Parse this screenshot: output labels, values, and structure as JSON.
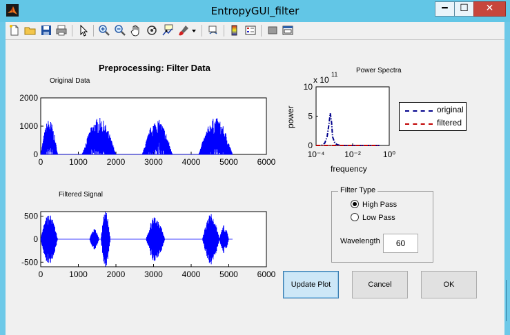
{
  "window": {
    "title": "EntropyGUI_filter",
    "controls": {
      "minimize": "━",
      "maximize": "☐",
      "close": "✕"
    }
  },
  "toolbar": {
    "icons": [
      "new-file-icon",
      "open-folder-icon",
      "save-icon",
      "print-icon",
      "pointer-icon",
      "zoom-in-icon",
      "zoom-out-icon",
      "pan-hand-icon",
      "rotate-3d-icon",
      "data-cursor-icon",
      "brush-icon",
      "brush-dropdown-icon",
      "link-plot-icon",
      "colorbar-icon",
      "legend-icon",
      "hide-plot-tools-icon",
      "show-plot-tools-icon"
    ],
    "dock_arrow": "↘"
  },
  "heading": "Preprocessing: Filter Data",
  "original_plot": {
    "label": "Original Data"
  },
  "filtered_plot": {
    "label": "Filtered Signal"
  },
  "power_plot": {
    "title": "Power Spectra",
    "exponent_base": "x 10",
    "exponent_power": "11",
    "xlabel": "frequency",
    "ylabel": "power"
  },
  "legend": {
    "original": "original",
    "filtered": "filtered"
  },
  "filter_panel": {
    "title": "Filter Type",
    "options": [
      {
        "label": "High Pass",
        "selected": true
      },
      {
        "label": "Low Pass",
        "selected": false
      }
    ],
    "wavelength_label": "Wavelength",
    "wavelength_value": "60"
  },
  "buttons": {
    "update": "Update Plot",
    "cancel": "Cancel",
    "ok": "OK"
  },
  "chart_data": [
    {
      "type": "line",
      "title": "Original Data",
      "xlim": [
        0,
        6000
      ],
      "ylim": [
        0,
        2000
      ],
      "xticks": [
        "0",
        "1000",
        "2000",
        "3000",
        "4000",
        "5000",
        "6000"
      ],
      "yticks": [
        "0",
        "1000",
        "2000"
      ],
      "color": "#0000ff",
      "bursts": [
        {
          "start": 0,
          "end": 450,
          "peak": 1250
        },
        {
          "start": 1100,
          "end": 2000,
          "peak": 1300
        },
        {
          "start": 2700,
          "end": 3500,
          "peak": 1250
        },
        {
          "start": 4200,
          "end": 5100,
          "peak": 1300
        }
      ]
    },
    {
      "type": "line",
      "title": "Filtered Signal",
      "xlim": [
        0,
        6000
      ],
      "ylim": [
        -600,
        600
      ],
      "xticks": [
        "0",
        "1000",
        "2000",
        "3000",
        "4000",
        "5000",
        "6000"
      ],
      "yticks": [
        "500",
        "0",
        "-500"
      ],
      "color": "#0000ff",
      "bursts": [
        {
          "start": 0,
          "end": 450,
          "peak": 550
        },
        {
          "start": 1300,
          "end": 1550,
          "peak": 220
        },
        {
          "start": 1600,
          "end": 1850,
          "peak": 600
        },
        {
          "start": 2800,
          "end": 3300,
          "peak": 500
        },
        {
          "start": 4300,
          "end": 4750,
          "peak": 550
        },
        {
          "start": 4750,
          "end": 5000,
          "peak": 300
        }
      ]
    },
    {
      "type": "line",
      "title": "Power Spectra",
      "xscale": "log",
      "xlim": [
        0.0001,
        1
      ],
      "ylim": [
        0,
        10
      ],
      "xticks": [
        "10⁻⁴",
        "10⁻²",
        "10⁰"
      ],
      "yticks": [
        "10",
        "5",
        "0"
      ],
      "series": [
        {
          "name": "original",
          "color": "#00008b",
          "style": "dash-dot",
          "x": [
            0.0001,
            0.0002,
            0.0003,
            0.0004,
            0.0005,
            0.0006,
            0.0007,
            0.0008,
            0.001,
            0.0013,
            0.002,
            0.01,
            0.1,
            0.3
          ],
          "y": [
            0,
            0,
            0.4,
            1.5,
            3.5,
            5.5,
            4,
            1.5,
            0.6,
            0.2,
            0,
            0,
            0,
            0
          ]
        },
        {
          "name": "filtered",
          "color": "#c00000",
          "style": "dash-dot",
          "x": [
            0.0001,
            0.0005,
            0.001,
            0.01,
            0.1,
            0.3
          ],
          "y": [
            0,
            0,
            0,
            0,
            0,
            0
          ]
        }
      ]
    }
  ]
}
